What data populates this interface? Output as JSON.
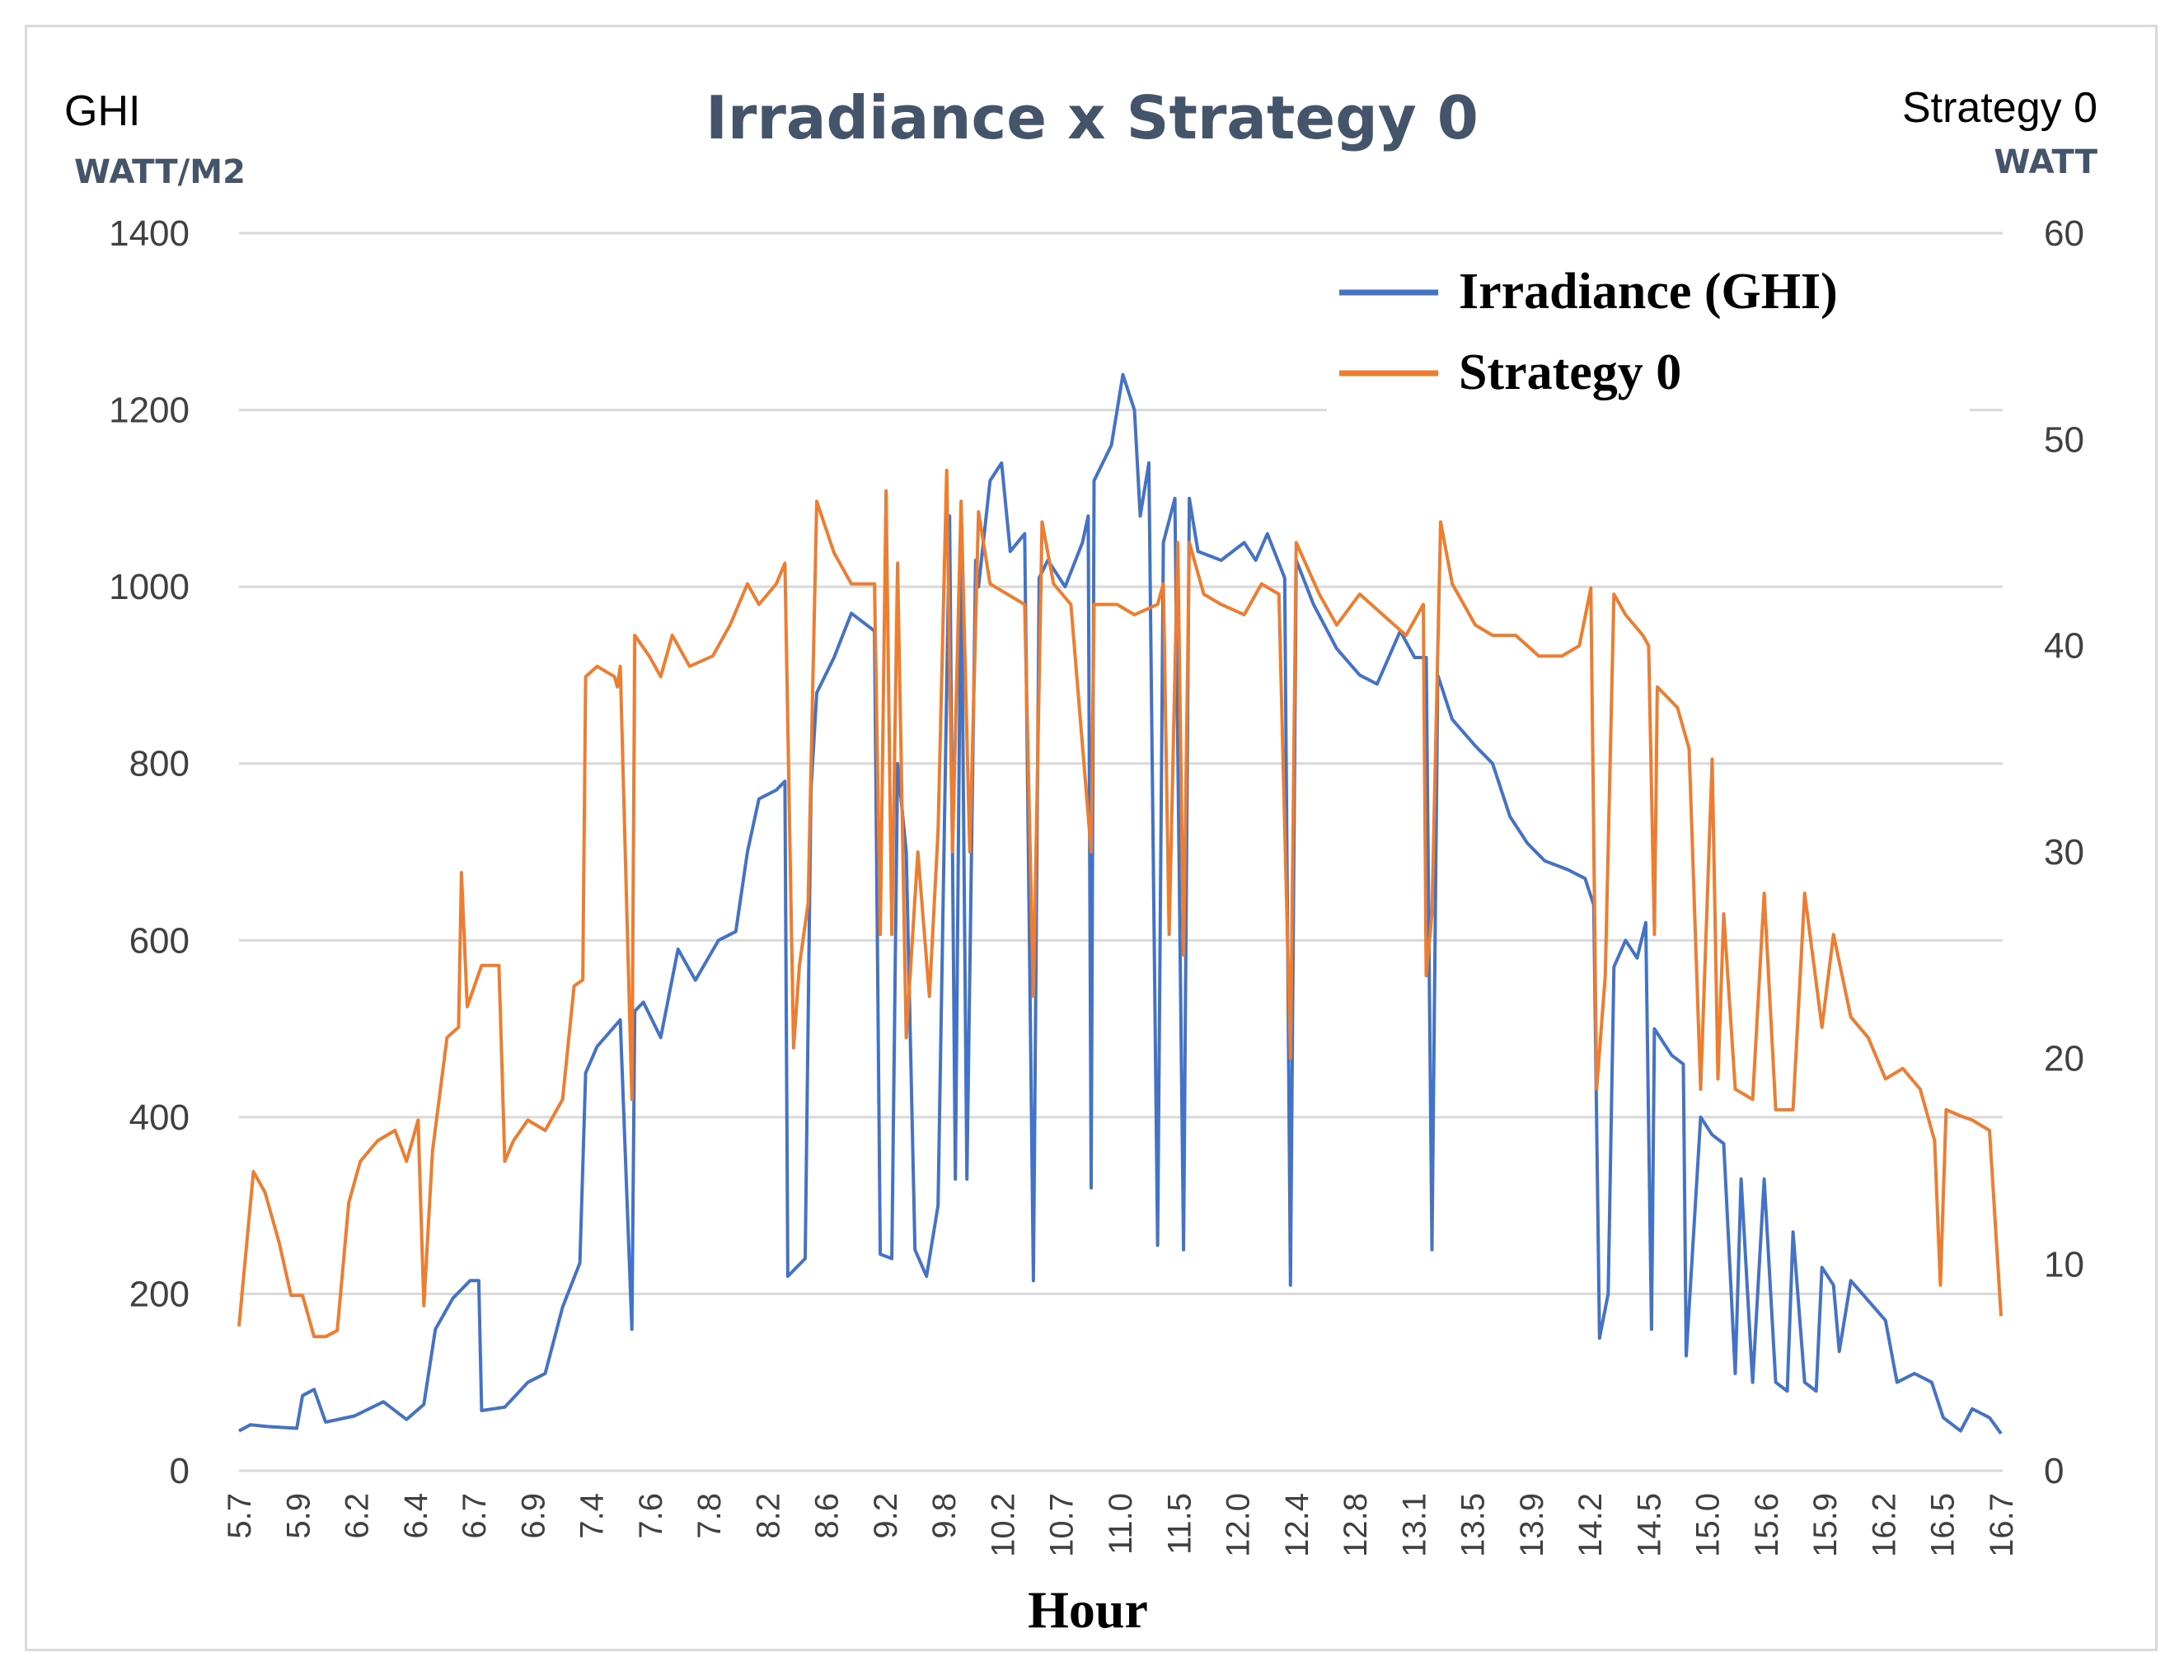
{
  "chart_data": {
    "type": "line",
    "title": "Irradiance x Strategy 0",
    "left_axis": {
      "name": "GHI",
      "unit": "WATT/M2",
      "range": [
        0,
        1400
      ],
      "ticks": [
        0,
        200,
        400,
        600,
        800,
        1000,
        1200,
        1400
      ]
    },
    "right_axis": {
      "name": "Strategy 0",
      "unit": "WATT",
      "range": [
        0,
        60
      ],
      "ticks": [
        0,
        10,
        20,
        30,
        40,
        50,
        60
      ]
    },
    "xlabel": "Hour",
    "x_tick_labels": [
      "5.7",
      "5.9",
      "6.2",
      "6.4",
      "6.7",
      "6.9",
      "7.4",
      "7.6",
      "7.8",
      "8.2",
      "8.6",
      "9.2",
      "9.8",
      "10.2",
      "10.7",
      "11.0",
      "11.5",
      "12.0",
      "12.4",
      "12.8",
      "13.1",
      "13.5",
      "13.9",
      "14.2",
      "14.5",
      "15.0",
      "15.6",
      "15.9",
      "16.2",
      "16.5",
      "16.7"
    ],
    "x_range": [
      0,
      30.5
    ],
    "legend": {
      "position": "top-right",
      "entries": [
        "Irradiance (GHI)",
        "Strategy 0"
      ]
    },
    "grid": true,
    "series": [
      {
        "name": "Irradiance (GHI)",
        "axis": "left",
        "color": "#4472c4",
        "points": [
          [
            0,
            45
          ],
          [
            0.2,
            52
          ],
          [
            0.5,
            50
          ],
          [
            1,
            48
          ],
          [
            1.1,
            85
          ],
          [
            1.3,
            92
          ],
          [
            1.5,
            55
          ],
          [
            2,
            62
          ],
          [
            2.5,
            78
          ],
          [
            2.9,
            58
          ],
          [
            3.2,
            75
          ],
          [
            3.4,
            160
          ],
          [
            3.7,
            195
          ],
          [
            4,
            215
          ],
          [
            4.15,
            215
          ],
          [
            4.2,
            68
          ],
          [
            4.6,
            72
          ],
          [
            5,
            100
          ],
          [
            5.3,
            110
          ],
          [
            5.6,
            185
          ],
          [
            5.9,
            235
          ],
          [
            6,
            450
          ],
          [
            6.2,
            480
          ],
          [
            6.6,
            510
          ],
          [
            6.8,
            160
          ],
          [
            6.85,
            520
          ],
          [
            7,
            530
          ],
          [
            7.3,
            490
          ],
          [
            7.6,
            590
          ],
          [
            7.9,
            555
          ],
          [
            8.3,
            600
          ],
          [
            8.6,
            610
          ],
          [
            8.8,
            700
          ],
          [
            9,
            760
          ],
          [
            9.3,
            770
          ],
          [
            9.45,
            780
          ],
          [
            9.5,
            220
          ],
          [
            9.8,
            240
          ],
          [
            9.9,
            770
          ],
          [
            10,
            880
          ],
          [
            10.3,
            920
          ],
          [
            10.6,
            970
          ],
          [
            11,
            950
          ],
          [
            11.1,
            245
          ],
          [
            11.3,
            240
          ],
          [
            11.4,
            800
          ],
          [
            11.55,
            700
          ],
          [
            11.7,
            250
          ],
          [
            11.9,
            220
          ],
          [
            12.1,
            300
          ],
          [
            12.3,
            1080
          ],
          [
            12.4,
            330
          ],
          [
            12.5,
            1050
          ],
          [
            12.6,
            330
          ],
          [
            12.75,
            1030
          ],
          [
            12.8,
            1000
          ],
          [
            13,
            1120
          ],
          [
            13.2,
            1140
          ],
          [
            13.35,
            1040
          ],
          [
            13.6,
            1060
          ],
          [
            13.75,
            215
          ],
          [
            13.85,
            1010
          ],
          [
            14,
            1030
          ],
          [
            14.3,
            1000
          ],
          [
            14.6,
            1050
          ],
          [
            14.7,
            1080
          ],
          [
            14.75,
            320
          ],
          [
            14.8,
            1120
          ],
          [
            15.1,
            1160
          ],
          [
            15.3,
            1240
          ],
          [
            15.5,
            1200
          ],
          [
            15.6,
            1080
          ],
          [
            15.75,
            1140
          ],
          [
            15.9,
            255
          ],
          [
            16,
            1050
          ],
          [
            16.2,
            1100
          ],
          [
            16.35,
            250
          ],
          [
            16.45,
            1100
          ],
          [
            16.6,
            1040
          ],
          [
            17,
            1030
          ],
          [
            17.4,
            1050
          ],
          [
            17.6,
            1030
          ],
          [
            17.8,
            1060
          ],
          [
            18.1,
            1010
          ],
          [
            18.2,
            210
          ],
          [
            18.3,
            1030
          ],
          [
            18.6,
            980
          ],
          [
            19,
            930
          ],
          [
            19.4,
            900
          ],
          [
            19.7,
            890
          ],
          [
            19.9,
            920
          ],
          [
            20.1,
            950
          ],
          [
            20.35,
            920
          ],
          [
            20.55,
            920
          ],
          [
            20.65,
            250
          ],
          [
            20.75,
            900
          ],
          [
            21,
            850
          ],
          [
            21.4,
            820
          ],
          [
            21.7,
            800
          ],
          [
            22,
            740
          ],
          [
            22.3,
            710
          ],
          [
            22.6,
            690
          ],
          [
            23,
            680
          ],
          [
            23.3,
            670
          ],
          [
            23.45,
            640
          ],
          [
            23.55,
            150
          ],
          [
            23.7,
            200
          ],
          [
            23.8,
            570
          ],
          [
            24,
            600
          ],
          [
            24.2,
            580
          ],
          [
            24.35,
            620
          ],
          [
            24.45,
            160
          ],
          [
            24.5,
            500
          ],
          [
            24.8,
            470
          ],
          [
            25,
            460
          ],
          [
            25.05,
            130
          ],
          [
            25.3,
            400
          ],
          [
            25.5,
            380
          ],
          [
            25.7,
            370
          ],
          [
            25.9,
            110
          ],
          [
            26,
            330
          ],
          [
            26.2,
            100
          ],
          [
            26.4,
            330
          ],
          [
            26.6,
            100
          ],
          [
            26.8,
            90
          ],
          [
            26.9,
            270
          ],
          [
            27.1,
            100
          ],
          [
            27.3,
            90
          ],
          [
            27.4,
            230
          ],
          [
            27.6,
            210
          ],
          [
            27.7,
            135
          ],
          [
            27.9,
            215
          ],
          [
            28.1,
            200
          ],
          [
            28.5,
            170
          ],
          [
            28.7,
            100
          ],
          [
            29,
            110
          ],
          [
            29.3,
            100
          ],
          [
            29.5,
            60
          ],
          [
            29.8,
            45
          ],
          [
            30,
            70
          ],
          [
            30.3,
            60
          ],
          [
            30.5,
            42
          ]
        ]
      },
      {
        "name": "Strategy 0",
        "axis": "right",
        "color": "#ed7d31",
        "points": [
          [
            0,
            7
          ],
          [
            0.1,
            10
          ],
          [
            0.25,
            14.5
          ],
          [
            0.45,
            13.5
          ],
          [
            0.7,
            11
          ],
          [
            0.9,
            8.5
          ],
          [
            1.1,
            8.5
          ],
          [
            1.3,
            6.5
          ],
          [
            1.5,
            6.5
          ],
          [
            1.7,
            6.8
          ],
          [
            1.9,
            13
          ],
          [
            2.1,
            15
          ],
          [
            2.4,
            16
          ],
          [
            2.7,
            16.5
          ],
          [
            2.9,
            15
          ],
          [
            3.1,
            17
          ],
          [
            3.2,
            8
          ],
          [
            3.35,
            15.5
          ],
          [
            3.6,
            21
          ],
          [
            3.8,
            21.5
          ],
          [
            3.85,
            29
          ],
          [
            3.95,
            22.5
          ],
          [
            4.2,
            24.5
          ],
          [
            4.5,
            24.5
          ],
          [
            4.6,
            15
          ],
          [
            4.75,
            16
          ],
          [
            5,
            17
          ],
          [
            5.3,
            16.5
          ],
          [
            5.6,
            18
          ],
          [
            5.8,
            23.5
          ],
          [
            5.95,
            23.8
          ],
          [
            6,
            38.5
          ],
          [
            6.2,
            39
          ],
          [
            6.5,
            38.5
          ],
          [
            6.55,
            38
          ],
          [
            6.6,
            39
          ],
          [
            6.8,
            18
          ],
          [
            6.85,
            40.5
          ],
          [
            7.1,
            39.5
          ],
          [
            7.3,
            38.5
          ],
          [
            7.5,
            40.5
          ],
          [
            7.8,
            39
          ],
          [
            8.2,
            39.5
          ],
          [
            8.5,
            41
          ],
          [
            8.8,
            43
          ],
          [
            9,
            42
          ],
          [
            9.3,
            43
          ],
          [
            9.45,
            44
          ],
          [
            9.6,
            20.5
          ],
          [
            9.7,
            24.5
          ],
          [
            9.85,
            27.5
          ],
          [
            10,
            47
          ],
          [
            10.3,
            44.5
          ],
          [
            10.6,
            43
          ],
          [
            11,
            43
          ],
          [
            11.1,
            26
          ],
          [
            11.2,
            47.5
          ],
          [
            11.3,
            26
          ],
          [
            11.4,
            44
          ],
          [
            11.55,
            21
          ],
          [
            11.75,
            30
          ],
          [
            11.95,
            23
          ],
          [
            12.1,
            31
          ],
          [
            12.25,
            48.5
          ],
          [
            12.35,
            30
          ],
          [
            12.5,
            47
          ],
          [
            12.65,
            30
          ],
          [
            12.8,
            46.5
          ],
          [
            13,
            43
          ],
          [
            13.3,
            42.5
          ],
          [
            13.6,
            42
          ],
          [
            13.75,
            23
          ],
          [
            13.9,
            46
          ],
          [
            14.1,
            43
          ],
          [
            14.4,
            42
          ],
          [
            14.75,
            30
          ],
          [
            14.8,
            42
          ],
          [
            15.2,
            42
          ],
          [
            15.5,
            41.5
          ],
          [
            15.9,
            42
          ],
          [
            16,
            43
          ],
          [
            16.1,
            26
          ],
          [
            16.25,
            45
          ],
          [
            16.35,
            25
          ],
          [
            16.45,
            45
          ],
          [
            16.7,
            42.5
          ],
          [
            17,
            42
          ],
          [
            17.4,
            41.5
          ],
          [
            17.7,
            43
          ],
          [
            18,
            42.5
          ],
          [
            18.2,
            20
          ],
          [
            18.3,
            45
          ],
          [
            18.7,
            42.5
          ],
          [
            19,
            41
          ],
          [
            19.4,
            42.5
          ],
          [
            19.8,
            41.5
          ],
          [
            20.2,
            40.5
          ],
          [
            20.5,
            42
          ],
          [
            20.55,
            24
          ],
          [
            20.65,
            27
          ],
          [
            20.8,
            46
          ],
          [
            21,
            43
          ],
          [
            21.4,
            41
          ],
          [
            21.7,
            40.5
          ],
          [
            22.1,
            40.5
          ],
          [
            22.5,
            39.5
          ],
          [
            22.9,
            39.5
          ],
          [
            23.2,
            40
          ],
          [
            23.4,
            42.8
          ],
          [
            23.5,
            18.5
          ],
          [
            23.65,
            24
          ],
          [
            23.8,
            42.5
          ],
          [
            24,
            41.5
          ],
          [
            24.3,
            40.5
          ],
          [
            24.4,
            40
          ],
          [
            24.5,
            26
          ],
          [
            24.55,
            38
          ],
          [
            24.9,
            37
          ],
          [
            25.1,
            35
          ],
          [
            25.3,
            18.5
          ],
          [
            25.5,
            34.5
          ],
          [
            25.6,
            19
          ],
          [
            25.7,
            27
          ],
          [
            25.9,
            18.5
          ],
          [
            26.2,
            18
          ],
          [
            26.4,
            28
          ],
          [
            26.6,
            17.5
          ],
          [
            26.9,
            17.5
          ],
          [
            27.1,
            28
          ],
          [
            27.4,
            21.5
          ],
          [
            27.6,
            26
          ],
          [
            27.9,
            22
          ],
          [
            28.2,
            21
          ],
          [
            28.5,
            19
          ],
          [
            28.8,
            19.5
          ],
          [
            29.1,
            18.5
          ],
          [
            29.35,
            16
          ],
          [
            29.45,
            9
          ],
          [
            29.55,
            17.5
          ],
          [
            29.8,
            17.2
          ],
          [
            30,
            17
          ],
          [
            30.3,
            16.5
          ],
          [
            30.5,
            7.5
          ]
        ]
      }
    ]
  }
}
